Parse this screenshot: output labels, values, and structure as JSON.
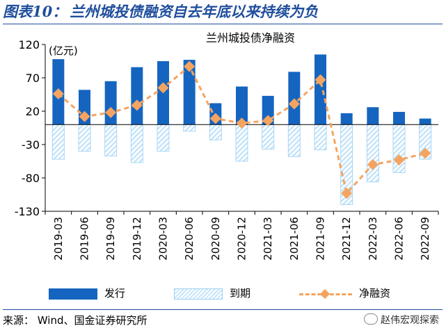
{
  "figure": {
    "number": "图表10：",
    "title": "兰州城投债融资自去年底以来持续为负",
    "source": "来源：  Wind、国金证券研究所",
    "watermark": "赵伟宏观探索"
  },
  "colors": {
    "title": "#1f4e9c",
    "issue": "#1565c0",
    "due_hatch": "#c6e6fb",
    "net": "#f4a460",
    "axis": "#000000"
  },
  "chart_data": {
    "type": "bar",
    "title": "兰州城投债净融资",
    "ylabel": "(亿元)",
    "xlabel": "",
    "ylim": [
      -130,
      120
    ],
    "yticks": [
      -130,
      -80,
      -30,
      20,
      70,
      120
    ],
    "categories": [
      "2019-03",
      "2019-06",
      "2019-09",
      "2019-12",
      "2020-03",
      "2020-06",
      "2020-09",
      "2020-12",
      "2021-03",
      "2021-06",
      "2021-09",
      "2021-12",
      "2022-03",
      "2022-06",
      "2022-09"
    ],
    "series": [
      {
        "name": "发行",
        "kind": "bar",
        "values": [
          98,
          52,
          65,
          86,
          95,
          97,
          32,
          57,
          43,
          79,
          105,
          17,
          26,
          19,
          9
        ]
      },
      {
        "name": "到期",
        "kind": "bar",
        "values": [
          -52,
          -40,
          -47,
          -57,
          -40,
          -10,
          -23,
          -55,
          -37,
          -48,
          -38,
          -120,
          -86,
          -72,
          -52
        ]
      },
      {
        "name": "净融资",
        "kind": "line",
        "values": [
          46,
          12,
          18,
          29,
          55,
          87,
          9,
          2,
          6,
          31,
          67,
          -103,
          -60,
          -53,
          -43
        ]
      }
    ],
    "legend": [
      "发行",
      "到期",
      "净融资"
    ],
    "legend_position": "bottom",
    "grid": false
  }
}
